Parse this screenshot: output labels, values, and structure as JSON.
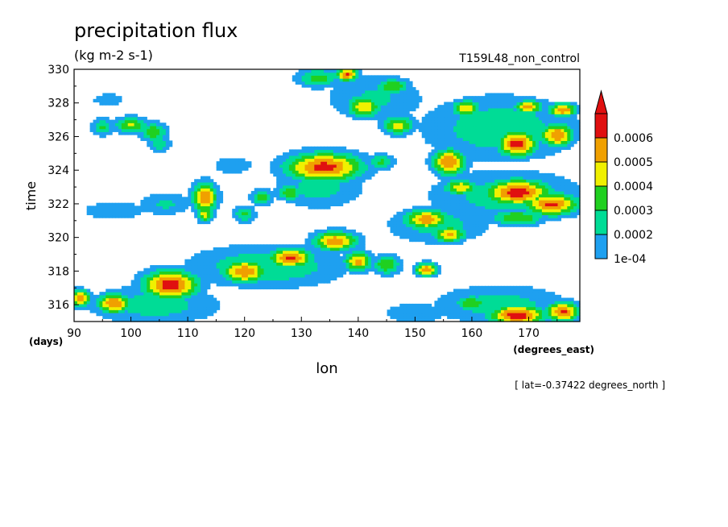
{
  "chart_data": {
    "type": "heatmap",
    "title": "precipitation flux",
    "units": "(kg m-2 s-1)",
    "run_label": "T159L48_non_control",
    "xlabel": "lon",
    "x_units": "(degrees_east)",
    "ylabel": "time",
    "y_units": "(days)",
    "footnote": "[ lat=-0.37422 degrees_north ]",
    "xlim": [
      90,
      179
    ],
    "ylim": [
      315,
      330
    ],
    "x_ticks": [
      90,
      100,
      110,
      120,
      130,
      140,
      150,
      160,
      170
    ],
    "y_ticks": [
      316,
      318,
      320,
      322,
      324,
      326,
      328,
      330
    ],
    "colorbar": {
      "labels": [
        "1e-04",
        "0.0002",
        "0.0003",
        "0.0004",
        "0.0005",
        "0.0006"
      ],
      "colors": [
        "#1ea0f0",
        "#00dc96",
        "#20d020",
        "#f0f000",
        "#f0a000",
        "#e01010"
      ],
      "extend": "max"
    },
    "features": [
      {
        "lon": 95,
        "t": 326.6,
        "a": 2.0,
        "b": 0.55,
        "v": 0.00032
      },
      {
        "lon": 100,
        "t": 326.7,
        "a": 3.0,
        "b": 0.5,
        "v": 0.00042
      },
      {
        "lon": 104,
        "t": 326.3,
        "a": 2.5,
        "b": 0.55,
        "v": 0.0004
      },
      {
        "lon": 105,
        "t": 325.6,
        "a": 2.0,
        "b": 0.5,
        "v": 0.0003
      },
      {
        "lon": 96,
        "t": 328.2,
        "a": 3.0,
        "b": 0.4,
        "v": 0.0002
      },
      {
        "lon": 113,
        "t": 322.4,
        "a": 2.2,
        "b": 0.9,
        "v": 0.0006
      },
      {
        "lon": 113,
        "t": 321.4,
        "a": 1.5,
        "b": 0.5,
        "v": 0.00045
      },
      {
        "lon": 106,
        "t": 322.0,
        "a": 5.0,
        "b": 0.7,
        "v": 0.00022
      },
      {
        "lon": 97,
        "t": 321.6,
        "a": 6.0,
        "b": 0.6,
        "v": 0.0002
      },
      {
        "lon": 120,
        "t": 321.4,
        "a": 2.0,
        "b": 0.5,
        "v": 0.00032
      },
      {
        "lon": 123,
        "t": 322.4,
        "a": 2.0,
        "b": 0.5,
        "v": 0.00035
      },
      {
        "lon": 128,
        "t": 322.7,
        "a": 2.5,
        "b": 0.5,
        "v": 0.00038
      },
      {
        "lon": 134,
        "t": 324.2,
        "a": 7.0,
        "b": 0.9,
        "v": 0.00065
      },
      {
        "lon": 133,
        "t": 323.0,
        "a": 8.0,
        "b": 1.3,
        "v": 0.00025
      },
      {
        "lon": 144,
        "t": 324.5,
        "a": 2.5,
        "b": 0.5,
        "v": 0.00032
      },
      {
        "lon": 118,
        "t": 324.3,
        "a": 4.0,
        "b": 0.6,
        "v": 0.00018
      },
      {
        "lon": 107,
        "t": 317.2,
        "a": 5.0,
        "b": 0.9,
        "v": 0.00066
      },
      {
        "lon": 97,
        "t": 316.1,
        "a": 3.0,
        "b": 0.6,
        "v": 0.0006
      },
      {
        "lon": 91,
        "t": 316.4,
        "a": 2.0,
        "b": 0.5,
        "v": 0.00058
      },
      {
        "lon": 120,
        "t": 318.0,
        "a": 4.0,
        "b": 0.7,
        "v": 0.0006
      },
      {
        "lon": 128,
        "t": 318.8,
        "a": 4.0,
        "b": 0.6,
        "v": 0.00062
      },
      {
        "lon": 136,
        "t": 319.8,
        "a": 4.0,
        "b": 0.6,
        "v": 0.00058
      },
      {
        "lon": 140,
        "t": 318.6,
        "a": 2.5,
        "b": 0.6,
        "v": 0.00055
      },
      {
        "lon": 124,
        "t": 318.3,
        "a": 14.0,
        "b": 1.3,
        "v": 0.0003
      },
      {
        "lon": 104,
        "t": 316.0,
        "a": 12.0,
        "b": 1.2,
        "v": 0.00026
      },
      {
        "lon": 145,
        "t": 318.4,
        "a": 2.5,
        "b": 0.6,
        "v": 0.0004
      },
      {
        "lon": 152,
        "t": 318.1,
        "a": 2.0,
        "b": 0.4,
        "v": 0.0006
      },
      {
        "lon": 152,
        "t": 321.1,
        "a": 4.0,
        "b": 0.6,
        "v": 0.00058
      },
      {
        "lon": 156,
        "t": 320.2,
        "a": 3.0,
        "b": 0.5,
        "v": 0.00052
      },
      {
        "lon": 154,
        "t": 320.8,
        "a": 9.0,
        "b": 1.2,
        "v": 0.00026
      },
      {
        "lon": 168,
        "t": 322.7,
        "a": 6.0,
        "b": 0.8,
        "v": 0.00066
      },
      {
        "lon": 174,
        "t": 322.0,
        "a": 5.0,
        "b": 0.7,
        "v": 0.00062
      },
      {
        "lon": 158,
        "t": 323.0,
        "a": 3.0,
        "b": 0.5,
        "v": 0.00048
      },
      {
        "lon": 168,
        "t": 321.2,
        "a": 5.0,
        "b": 0.5,
        "v": 0.0004
      },
      {
        "lon": 166,
        "t": 322.5,
        "a": 14.0,
        "b": 1.6,
        "v": 0.00026
      },
      {
        "lon": 156,
        "t": 324.5,
        "a": 3.0,
        "b": 0.8,
        "v": 0.0006
      },
      {
        "lon": 168,
        "t": 325.6,
        "a": 3.5,
        "b": 0.8,
        "v": 0.00066
      },
      {
        "lon": 175,
        "t": 326.1,
        "a": 3.0,
        "b": 0.7,
        "v": 0.0006
      },
      {
        "lon": 176,
        "t": 327.6,
        "a": 2.5,
        "b": 0.4,
        "v": 0.0006
      },
      {
        "lon": 170,
        "t": 327.8,
        "a": 2.5,
        "b": 0.4,
        "v": 0.00055
      },
      {
        "lon": 159,
        "t": 327.7,
        "a": 2.5,
        "b": 0.5,
        "v": 0.0005
      },
      {
        "lon": 165,
        "t": 326.5,
        "a": 14.0,
        "b": 2.0,
        "v": 0.00028
      },
      {
        "lon": 141,
        "t": 327.8,
        "a": 3.0,
        "b": 0.7,
        "v": 0.0005
      },
      {
        "lon": 147,
        "t": 326.7,
        "a": 3.0,
        "b": 0.6,
        "v": 0.00045
      },
      {
        "lon": 133,
        "t": 329.5,
        "a": 4.0,
        "b": 0.6,
        "v": 0.00035
      },
      {
        "lon": 138,
        "t": 329.7,
        "a": 2.0,
        "b": 0.4,
        "v": 0.00062
      },
      {
        "lon": 146,
        "t": 329.0,
        "a": 3.0,
        "b": 0.5,
        "v": 0.0004
      },
      {
        "lon": 143,
        "t": 328.3,
        "a": 9.0,
        "b": 1.5,
        "v": 0.00022
      },
      {
        "lon": 168,
        "t": 315.4,
        "a": 5.0,
        "b": 0.6,
        "v": 0.00068
      },
      {
        "lon": 176,
        "t": 315.6,
        "a": 3.0,
        "b": 0.6,
        "v": 0.00062
      },
      {
        "lon": 160,
        "t": 316.1,
        "a": 3.0,
        "b": 0.5,
        "v": 0.0004
      },
      {
        "lon": 165,
        "t": 316.0,
        "a": 12.0,
        "b": 1.2,
        "v": 0.00026
      },
      {
        "lon": 150,
        "t": 315.5,
        "a": 6.0,
        "b": 0.7,
        "v": 0.0002
      }
    ]
  }
}
